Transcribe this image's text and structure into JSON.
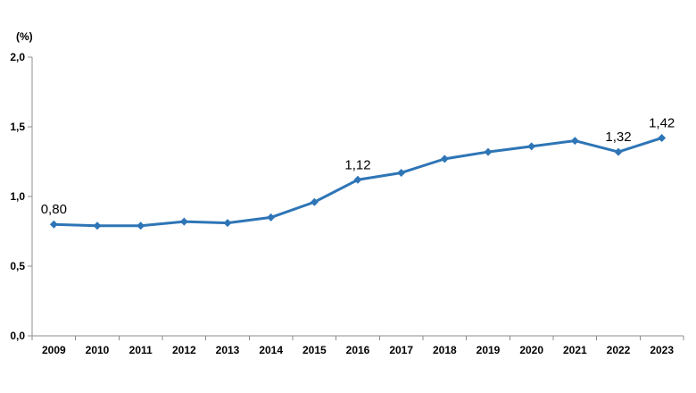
{
  "chart_data": {
    "type": "line",
    "x": [
      "2009",
      "2010",
      "2011",
      "2012",
      "2013",
      "2014",
      "2015",
      "2016",
      "2017",
      "2018",
      "2019",
      "2020",
      "2021",
      "2022",
      "2023"
    ],
    "series": [
      {
        "values": [
          0.8,
          0.79,
          0.79,
          0.82,
          0.81,
          0.85,
          0.96,
          1.12,
          1.17,
          1.27,
          1.32,
          1.36,
          1.4,
          1.32,
          1.42
        ]
      }
    ],
    "data_labels": [
      {
        "x": "2009",
        "text": "0,80"
      },
      {
        "x": "2016",
        "text": "1,12"
      },
      {
        "x": "2022",
        "text": "1,32"
      },
      {
        "x": "2023",
        "text": "1,42"
      }
    ],
    "unit_label": "(%)",
    "ylim": [
      0,
      2.0
    ],
    "yticks": [
      0,
      0.5,
      1.0,
      1.5,
      2.0
    ],
    "ytick_labels": [
      "0,0",
      "0,5",
      "1,0",
      "1,5",
      "2,0"
    ],
    "grid": false,
    "marker": "diamond",
    "line_color": "#2e75b6"
  }
}
